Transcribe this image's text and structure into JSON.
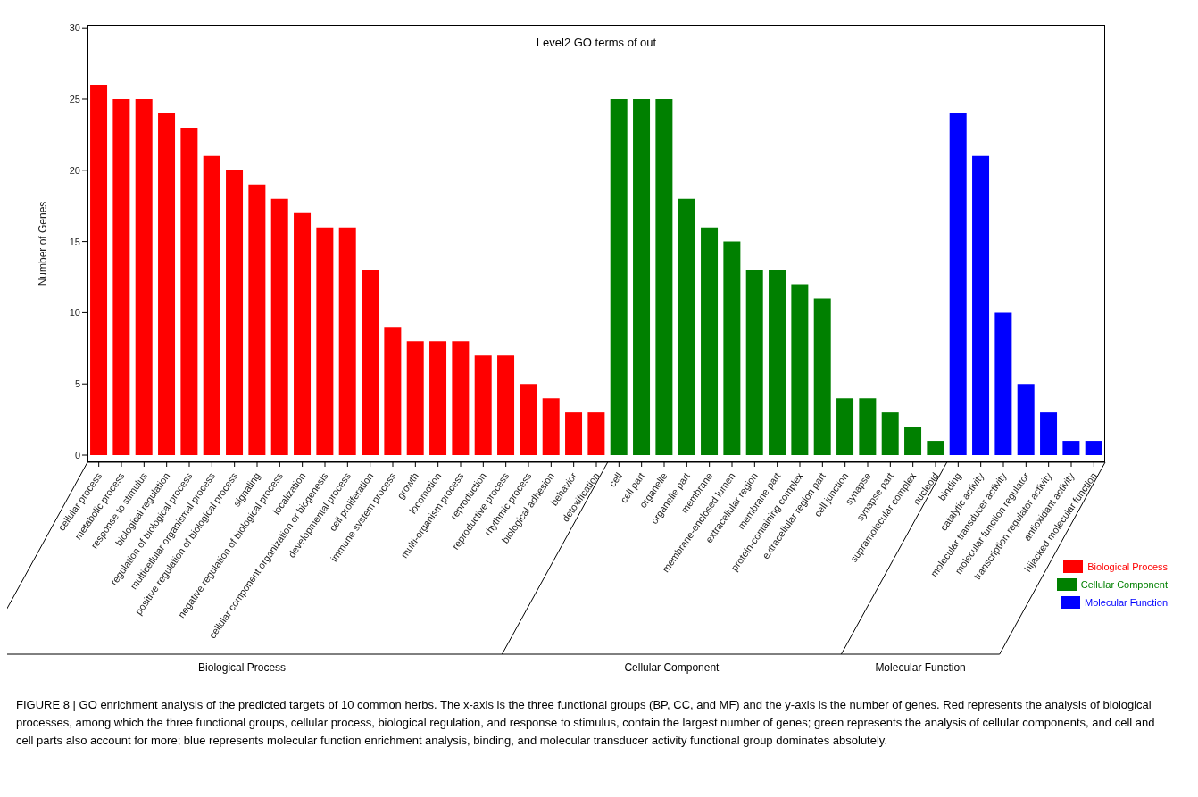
{
  "chart_data": {
    "type": "bar",
    "title": "Level2 GO terms of out",
    "ylabel": "Number of Genes",
    "categories": [
      "cellular process",
      "metabolic process",
      "response to stimulus",
      "biological regulation",
      "regulation of biological process",
      "multicellular organismal process",
      "positive regulation of biological process",
      "signaling",
      "negative regulation of biological process",
      "localization",
      "cellular component organization or biogenesis",
      "developmental process",
      "cell proliferation",
      "immune system process",
      "growth",
      "locomotion",
      "multi-organism process",
      "reproduction",
      "reproductive process",
      "rhythmic process",
      "biological adhesion",
      "behavior",
      "detoxification",
      "cell",
      "cell part",
      "organelle",
      "organelle part",
      "membrane",
      "membrane-enclosed lumen",
      "extracellular region",
      "membrane part",
      "protein-containing complex",
      "extracellular region part",
      "cell junction",
      "synapse",
      "synapse part",
      "supramolecular complex",
      "nucleoid",
      "binding",
      "catalytic activity",
      "molecular transducer activity",
      "molecular function regulator",
      "transcription regulator activity",
      "antioxidant activity",
      "hijacked molecular function"
    ],
    "series": [
      {
        "name": "Biological Process",
        "color": "#ff0000",
        "values": [
          26,
          25,
          25,
          24,
          23,
          21,
          20,
          19,
          18,
          17,
          16,
          16,
          13,
          9,
          8,
          8,
          8,
          7,
          7,
          5,
          4,
          3,
          3,
          null,
          null,
          null,
          null,
          null,
          null,
          null,
          null,
          null,
          null,
          null,
          null,
          null,
          null,
          null,
          null,
          null,
          null,
          null,
          null,
          null,
          null
        ]
      },
      {
        "name": "Cellular Component",
        "color": "#008000",
        "values": [
          null,
          null,
          null,
          null,
          null,
          null,
          null,
          null,
          null,
          null,
          null,
          null,
          null,
          null,
          null,
          null,
          null,
          null,
          null,
          null,
          null,
          null,
          null,
          25,
          25,
          25,
          18,
          16,
          15,
          13,
          13,
          12,
          11,
          4,
          4,
          3,
          2,
          1,
          null,
          null,
          null,
          null,
          null,
          null,
          null
        ]
      },
      {
        "name": "Molecular Function",
        "color": "#0000ff",
        "values": [
          null,
          null,
          null,
          null,
          null,
          null,
          null,
          null,
          null,
          null,
          null,
          null,
          null,
          null,
          null,
          null,
          null,
          null,
          null,
          null,
          null,
          null,
          null,
          null,
          null,
          null,
          null,
          null,
          null,
          null,
          null,
          null,
          null,
          null,
          null,
          null,
          null,
          null,
          24,
          21,
          10,
          5,
          3,
          1,
          1
        ]
      }
    ],
    "ylim": [
      -0.5,
      30.2
    ],
    "yticks": [
      0,
      5,
      10,
      15,
      20,
      25,
      30
    ],
    "grid": false,
    "legend": "bottom right",
    "annotations": [
      "Biological Process",
      "Cellular Component",
      "Molecular Function",
      "FIGURE 8 | GO enrichment analysis of the predicted targets of 10 common herbs. The x-axis is the three functional groups (BP, CC, and MF) and the y-axis is the number of genes. Red represents the analysis of biological processes, among which the three functional groups, cellular process, biological regulation, and response to stimulus, contain the largest number of genes; green represents the analysis of cellular components, and cell and cell parts also account for more; blue represents molecular function enrichment analysis, binding, and molecular transducer activity functional group dominates absolutely."
    ]
  }
}
